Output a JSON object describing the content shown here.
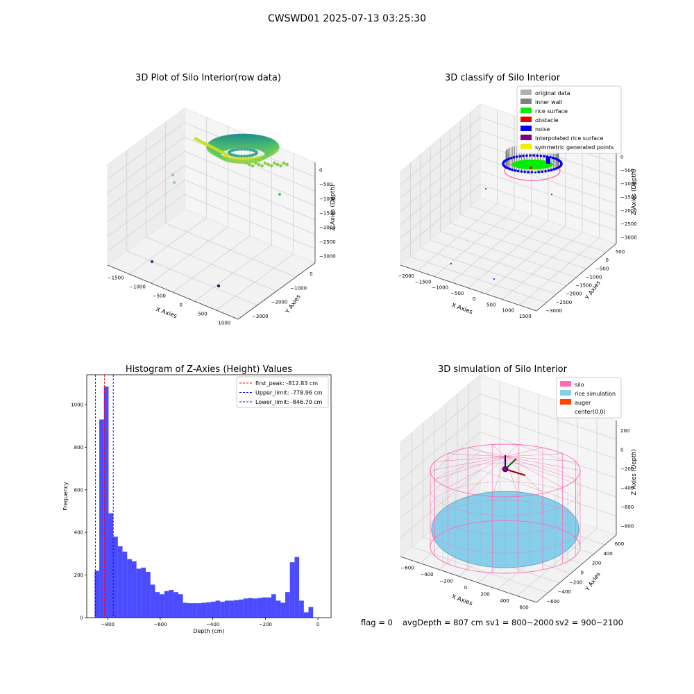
{
  "suptitle": "CWSWD01 2025-07-13 03:25:30",
  "footer": {
    "flag": "flag = 0",
    "avg": "avgDepth = 807 cm",
    "sv1": "sv1 = 800~2000",
    "sv2": "sv2 = 900~2100"
  },
  "chart_data": [
    {
      "type": "scatter",
      "title": "3D Plot of Silo Interior(row data)",
      "xlabel": "X Axies",
      "ylabel": "Y Axies",
      "zlabel": "Z Axies (Depth)",
      "x_ticks": [
        "−1500",
        "−1000",
        "−500",
        "0",
        "500",
        "1000"
      ],
      "y_ticks": [
        "−3000",
        "−2000",
        "−1000",
        "0"
      ],
      "z_ticks": [
        "0",
        "−500",
        "−1000",
        "−1500",
        "−2000",
        "−2500",
        "−3000"
      ],
      "colormap": "viridis (colored by depth)",
      "outliers": [
        {
          "x": -1200,
          "y": 0,
          "z": -1000,
          "color": "#8fd19e"
        },
        {
          "x": -1200,
          "y": 0,
          "z": -1200,
          "color": "#8fd19e"
        },
        {
          "x": 800,
          "y": 0,
          "z": -1700,
          "color": "#5cc86b"
        },
        {
          "x": -500,
          "y": -3000,
          "z": -3000,
          "color": "#5b2a86"
        },
        {
          "x": 600,
          "y": -3000,
          "z": -3000,
          "color": "#440154"
        }
      ]
    },
    {
      "type": "scatter",
      "title": "3D classify of Silo Interior",
      "xlabel": "X Axies",
      "ylabel": "Y Axies",
      "zlabel": "Z Axies (Depth)",
      "x_ticks": [
        "−2000",
        "−1500",
        "−1000",
        "−500",
        "0",
        "500",
        "1000",
        "1500"
      ],
      "y_ticks": [
        "−3000",
        "−2500",
        "−2000",
        "−1500",
        "−1000",
        "−500",
        "0",
        "500"
      ],
      "z_ticks": [
        "0",
        "−500",
        "−1000",
        "−1500",
        "−2000",
        "−2500",
        "−3000"
      ],
      "legend_position": "top-right",
      "legend": [
        {
          "label": "original data",
          "color": "#b0b0b0"
        },
        {
          "label": "inner wall",
          "color": "#808080"
        },
        {
          "label": "rice surface",
          "color": "#00ee00"
        },
        {
          "label": "obstacle",
          "color": "#ee0000"
        },
        {
          "label": "noise",
          "color": "#0000ee"
        },
        {
          "label": "interpolated rice surface",
          "color": "#800080"
        },
        {
          "label": "symmetric generated points",
          "color": "#eeee00"
        }
      ]
    },
    {
      "type": "bar",
      "title": "Histogram of Z-Axies (Height) Values",
      "xlabel": "Depth (cm)",
      "ylabel": "Frequency",
      "xlim": [
        -880,
        50
      ],
      "ylim": [
        0,
        1140
      ],
      "x_ticks": [
        -800,
        -600,
        -400,
        -200,
        0
      ],
      "x_tick_labels": [
        "−800",
        "−600",
        "−400",
        "−200",
        "0"
      ],
      "y_ticks": [
        0,
        200,
        400,
        600,
        800,
        1000
      ],
      "bar_color": "#0000ff",
      "bin_start": -850,
      "bin_width": 17.7,
      "values": [
        220,
        930,
        1085,
        490,
        380,
        335,
        310,
        275,
        265,
        230,
        235,
        215,
        155,
        120,
        110,
        125,
        130,
        120,
        110,
        70,
        68,
        68,
        68,
        70,
        72,
        75,
        80,
        75,
        80,
        80,
        82,
        85,
        90,
        92,
        90,
        92,
        95,
        95,
        110,
        80,
        70,
        120,
        260,
        285,
        80,
        25,
        50
      ],
      "lines": [
        {
          "label": "first_peak: -812.83 cm",
          "x": -812.83,
          "color": "#ff0000"
        },
        {
          "label": "Upper_limit: -778.96 cm",
          "x": -778.96,
          "color": "#0000ff"
        },
        {
          "label": "Lower_limit: -846.70 cm",
          "x": -846.7,
          "color": "#0000ff"
        }
      ],
      "legend_position": "top-right"
    },
    {
      "type": "scatter",
      "title": "3D simulation of Silo Interior",
      "xlabel": "X Axies",
      "ylabel": "Y Axies",
      "zlabel": "Z Axies (Depth)",
      "x_ticks": [
        "−600",
        "−400",
        "−200",
        "0",
        "200",
        "400",
        "600"
      ],
      "y_ticks": [
        "−600",
        "−400",
        "−200",
        "0",
        "200",
        "400",
        "600"
      ],
      "z_ticks": [
        "200",
        "0",
        "−200",
        "−400",
        "−600",
        "−800"
      ],
      "legend_position": "top-right",
      "legend": [
        {
          "label": "silo",
          "color": "#ff69b4"
        },
        {
          "label": "rice simulation",
          "color": "#87ceeb"
        },
        {
          "label": "auger",
          "color": "#ff4500"
        },
        {
          "label": "center(0,0)",
          "color": ""
        }
      ]
    }
  ]
}
